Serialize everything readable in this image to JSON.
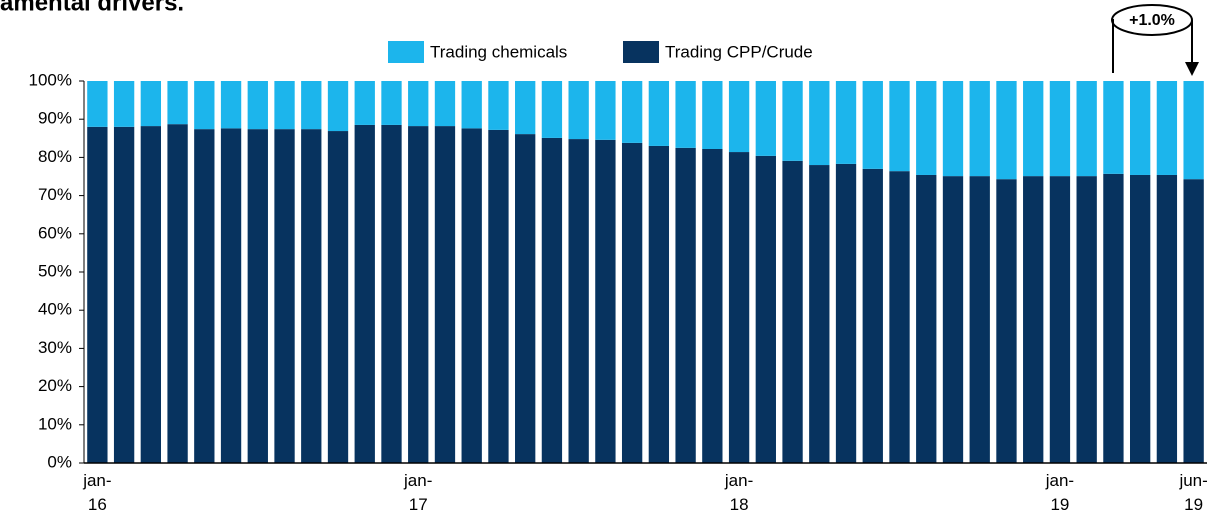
{
  "chart_data": {
    "type": "stacked_bar",
    "title": "amental drivers.",
    "annotation": "+1.0%",
    "categories": [
      "jan-16",
      null,
      null,
      null,
      null,
      null,
      null,
      null,
      null,
      null,
      null,
      null,
      "jan-17",
      null,
      null,
      null,
      null,
      null,
      null,
      null,
      null,
      null,
      null,
      null,
      "jan-18",
      null,
      null,
      null,
      null,
      null,
      null,
      null,
      null,
      null,
      null,
      null,
      "jan-19",
      null,
      null,
      null,
      null,
      "jun-19"
    ],
    "series": [
      {
        "name": "Trading chemicals",
        "color": "#1cb5ec",
        "values": [
          12.0,
          12.0,
          11.8,
          11.3,
          12.6,
          12.4,
          12.6,
          12.6,
          12.6,
          13.1,
          11.5,
          11.5,
          11.8,
          11.8,
          12.4,
          12.8,
          13.9,
          14.9,
          15.2,
          15.4,
          16.2,
          17.0,
          17.5,
          17.8,
          18.6,
          19.6,
          20.9,
          22.0,
          21.7,
          23.0,
          23.6,
          24.6,
          24.9,
          24.9,
          25.7,
          24.9,
          24.9,
          24.9,
          24.3,
          24.6,
          24.6,
          25.7
        ]
      },
      {
        "name": "Trading CPP/Crude",
        "color": "#07335f",
        "values": [
          88.0,
          88.0,
          88.2,
          88.7,
          87.4,
          87.6,
          87.4,
          87.4,
          87.4,
          86.9,
          88.5,
          88.5,
          88.2,
          88.2,
          87.6,
          87.2,
          86.1,
          85.1,
          84.8,
          84.6,
          83.8,
          83.0,
          82.5,
          82.2,
          81.4,
          80.4,
          79.1,
          78.0,
          78.3,
          77.0,
          76.4,
          75.4,
          75.1,
          75.1,
          74.3,
          75.1,
          75.1,
          75.1,
          75.7,
          75.4,
          75.4,
          74.3
        ]
      }
    ],
    "ylim": [
      0,
      100
    ],
    "yticks": [
      {
        "value": 0,
        "label": "0%"
      },
      {
        "value": 10,
        "label": "10%"
      },
      {
        "value": 20,
        "label": "20%"
      },
      {
        "value": 30,
        "label": "30%"
      },
      {
        "value": 40,
        "label": "40%"
      },
      {
        "value": 50,
        "label": "50%"
      },
      {
        "value": 60,
        "label": "60%"
      },
      {
        "value": 70,
        "label": "70%"
      },
      {
        "value": 80,
        "label": "80%"
      },
      {
        "value": 90,
        "label": "90%"
      },
      {
        "value": 100,
        "label": "100%"
      }
    ],
    "legend": "top"
  }
}
